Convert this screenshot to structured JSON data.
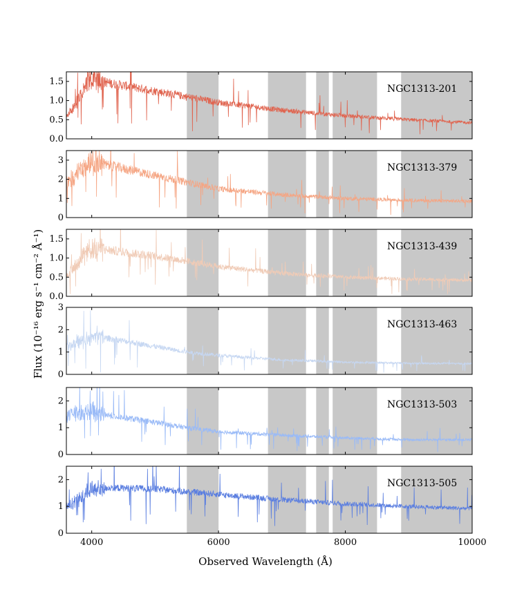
{
  "chart_data": {
    "type": "line",
    "xlabel": "Observed Wavelength (Å)",
    "ylabel": "Flux (10⁻¹⁶ erg s⁻¹ cm⁻² Å⁻¹)",
    "xlim": [
      3600,
      10000
    ],
    "x_ticks": [
      4000,
      6000,
      8000,
      10000
    ],
    "shaded_regions": [
      [
        5500,
        6000
      ],
      [
        6780,
        7380
      ],
      [
        7540,
        7740
      ],
      [
        7800,
        8500
      ],
      [
        8880,
        10000
      ]
    ],
    "shade_color": "#c8c8c8",
    "panels": [
      {
        "name": "NGC1313-201",
        "color": "#e0644f",
        "ylim": [
          0,
          1.75
        ],
        "y_ticks": [
          0.0,
          0.5,
          1.0,
          1.5
        ],
        "y_tick_labels": [
          "0.0",
          "0.5",
          "1.0",
          "1.5"
        ],
        "noise": 0.09,
        "continuum": {
          "x": [
            3600,
            3800,
            3950,
            4050,
            4300,
            5000,
            5500,
            6000,
            7000,
            8000,
            9000,
            10000
          ],
          "y": [
            0.55,
            1.05,
            1.5,
            1.55,
            1.45,
            1.25,
            1.1,
            0.95,
            0.75,
            0.6,
            0.5,
            0.42
          ]
        }
      },
      {
        "name": "NGC1313-379",
        "color": "#f5a583",
        "ylim": [
          0,
          3.5
        ],
        "y_ticks": [
          0,
          1,
          2,
          3
        ],
        "y_tick_labels": [
          "0",
          "1",
          "2",
          "3"
        ],
        "noise": 0.1,
        "continuum": {
          "x": [
            3600,
            3800,
            4000,
            4300,
            5000,
            5500,
            6000,
            7000,
            8000,
            9000,
            10000
          ],
          "y": [
            1.8,
            2.4,
            2.9,
            2.7,
            2.2,
            1.85,
            1.5,
            1.2,
            1.0,
            0.9,
            0.85
          ]
        }
      },
      {
        "name": "NGC1313-439",
        "color": "#f0cbb6",
        "ylim": [
          0,
          1.75
        ],
        "y_ticks": [
          0.0,
          0.5,
          1.0,
          1.5
        ],
        "y_tick_labels": [
          "0.0",
          "0.5",
          "1.0",
          "1.5"
        ],
        "noise": 0.1,
        "continuum": {
          "x": [
            3600,
            3800,
            4000,
            4300,
            5000,
            5500,
            6000,
            7000,
            8000,
            9000,
            10000
          ],
          "y": [
            0.5,
            0.95,
            1.25,
            1.2,
            1.05,
            0.92,
            0.78,
            0.6,
            0.5,
            0.45,
            0.42
          ]
        }
      },
      {
        "name": "NGC1313-463",
        "color": "#c6d7f2",
        "ylim": [
          0,
          3
        ],
        "y_ticks": [
          0,
          1,
          2,
          3
        ],
        "y_tick_labels": [
          "0",
          "1",
          "2",
          "3"
        ],
        "noise": 0.09,
        "continuum": {
          "x": [
            3600,
            3800,
            4000,
            4300,
            5000,
            5500,
            6000,
            7000,
            8000,
            9000,
            10000
          ],
          "y": [
            1.2,
            1.5,
            1.7,
            1.6,
            1.25,
            1.0,
            0.85,
            0.65,
            0.55,
            0.5,
            0.48
          ]
        }
      },
      {
        "name": "NGC1313-503",
        "color": "#99baf7",
        "ylim": [
          0,
          2.5
        ],
        "y_ticks": [
          0,
          1,
          2
        ],
        "y_tick_labels": [
          "0",
          "1",
          "2"
        ],
        "noise": 0.09,
        "continuum": {
          "x": [
            3600,
            3800,
            4000,
            4300,
            5000,
            5500,
            6000,
            7000,
            8000,
            9000,
            10000
          ],
          "y": [
            1.45,
            1.55,
            1.6,
            1.45,
            1.2,
            1.0,
            0.85,
            0.72,
            0.62,
            0.55,
            0.55
          ]
        }
      },
      {
        "name": "NGC1313-505",
        "color": "#5a7ee0",
        "ylim": [
          0,
          2.5
        ],
        "y_ticks": [
          0,
          1,
          2
        ],
        "y_tick_labels": [
          "0",
          "1",
          "2"
        ],
        "noise": 0.08,
        "continuum": {
          "x": [
            3600,
            3800,
            4000,
            4300,
            5000,
            5500,
            6000,
            7000,
            8000,
            9000,
            10000
          ],
          "y": [
            0.95,
            1.3,
            1.65,
            1.7,
            1.65,
            1.55,
            1.45,
            1.25,
            1.1,
            1.0,
            0.92
          ]
        }
      }
    ]
  }
}
